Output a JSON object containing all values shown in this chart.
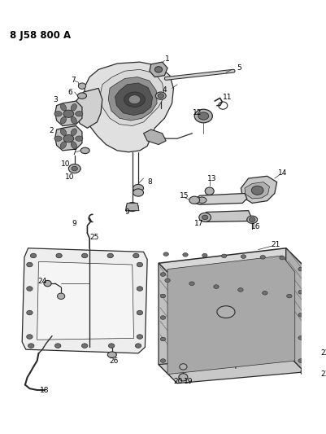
{
  "title": "8 J58 800 A",
  "bg_color": "#ffffff",
  "line_color": "#2a2a2a",
  "text_color": "#000000",
  "fig_width": 4.01,
  "fig_height": 5.33,
  "dpi": 100,
  "label_fs": 6.5,
  "title_fs": 8.5,
  "lw_main": 0.9,
  "lw_thick": 1.8,
  "lw_thin": 0.5,
  "gray_light": "#e0e0e0",
  "gray_mid": "#b0b0b0",
  "gray_dark": "#707070",
  "gray_vdark": "#3a3a3a"
}
